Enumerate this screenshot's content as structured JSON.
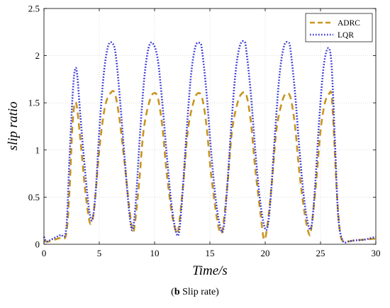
{
  "chart_data": {
    "type": "line",
    "xlabel": "Time/s",
    "ylabel": "slip ratio",
    "xlim": [
      0,
      30
    ],
    "ylim": [
      0,
      2.5
    ],
    "xticks": [
      "0",
      "5",
      "10",
      "15",
      "20",
      "25",
      "30"
    ],
    "yticks": [
      "0",
      "0.5",
      "1",
      "1.5",
      "2",
      "2.5"
    ],
    "grid": true,
    "legend_position": "top-right",
    "series": [
      {
        "name": "ADRC",
        "style": "dashed",
        "color": "#C8961E",
        "x": [
          0,
          0.5,
          1,
          1.5,
          2.0,
          2.3,
          2.6,
          2.9,
          3.3,
          3.7,
          4.1,
          4.35,
          4.6,
          5.0,
          5.5,
          6.0,
          6.4,
          6.8,
          7.3,
          7.7,
          8.0,
          8.2,
          8.6,
          9.0,
          9.5,
          9.9,
          10.3,
          10.7,
          11.1,
          11.6,
          12.0,
          12.2,
          12.6,
          13.0,
          13.5,
          13.9,
          14.3,
          14.7,
          15.1,
          15.6,
          15.95,
          16.2,
          16.6,
          17.0,
          17.5,
          17.9,
          18.3,
          18.7,
          19.1,
          19.6,
          19.9,
          20.2,
          20.6,
          21.0,
          21.5,
          21.9,
          22.3,
          22.7,
          23.1,
          23.6,
          24.0,
          24.2,
          24.6,
          25.0,
          25.4,
          25.8,
          26.0,
          26.2,
          26.5,
          26.8,
          27.2,
          28,
          29,
          30
        ],
        "y": [
          0.03,
          0.03,
          0.05,
          0.07,
          0.1,
          0.55,
          1.3,
          1.5,
          1.1,
          0.6,
          0.25,
          0.25,
          0.45,
          1.0,
          1.45,
          1.6,
          1.6,
          1.35,
          0.85,
          0.4,
          0.15,
          0.2,
          0.65,
          1.2,
          1.5,
          1.6,
          1.55,
          1.25,
          0.75,
          0.3,
          0.12,
          0.2,
          0.65,
          1.2,
          1.5,
          1.6,
          1.55,
          1.25,
          0.75,
          0.3,
          0.12,
          0.2,
          0.65,
          1.2,
          1.5,
          1.6,
          1.58,
          1.3,
          0.8,
          0.3,
          0.05,
          0.2,
          0.65,
          1.2,
          1.5,
          1.6,
          1.55,
          1.25,
          0.75,
          0.3,
          0.1,
          0.2,
          0.65,
          1.2,
          1.5,
          1.6,
          1.58,
          1.2,
          0.5,
          0.1,
          0.03,
          0.04,
          0.05,
          0.06
        ]
      },
      {
        "name": "LQR",
        "style": "dotted",
        "color": "#3A3AD4",
        "x": [
          0,
          0.2,
          0.5,
          1.0,
          1.5,
          2.0,
          2.3,
          2.6,
          2.8,
          3.0,
          3.3,
          3.7,
          4.1,
          4.4,
          4.7,
          5.0,
          5.4,
          5.8,
          6.2,
          6.5,
          6.9,
          7.3,
          7.7,
          8.0,
          8.3,
          8.7,
          9.1,
          9.5,
          9.9,
          10.3,
          10.7,
          11.1,
          11.5,
          11.9,
          12.2,
          12.5,
          12.9,
          13.3,
          13.7,
          14.1,
          14.3,
          14.7,
          15.1,
          15.5,
          15.9,
          16.2,
          16.5,
          16.9,
          17.3,
          17.7,
          18.1,
          18.3,
          18.7,
          19.1,
          19.5,
          19.9,
          20.2,
          20.5,
          20.9,
          21.3,
          21.7,
          22.1,
          22.3,
          22.7,
          23.1,
          23.5,
          23.9,
          24.2,
          24.5,
          24.9,
          25.3,
          25.7,
          26.0,
          26.3,
          26.6,
          27.0,
          27.5,
          28,
          29,
          30
        ],
        "y": [
          0.08,
          0.03,
          0.04,
          0.07,
          0.1,
          0.15,
          0.9,
          1.6,
          1.85,
          1.8,
          1.35,
          0.8,
          0.35,
          0.27,
          0.6,
          1.2,
          1.8,
          2.1,
          2.13,
          2.0,
          1.5,
          0.9,
          0.35,
          0.15,
          0.45,
          1.2,
          1.8,
          2.1,
          2.12,
          1.95,
          1.5,
          0.95,
          0.45,
          0.15,
          0.12,
          0.5,
          1.2,
          1.8,
          2.1,
          2.13,
          2.05,
          1.6,
          1.0,
          0.5,
          0.2,
          0.15,
          0.5,
          1.2,
          1.8,
          2.1,
          2.15,
          2.05,
          1.6,
          1.0,
          0.5,
          0.2,
          0.18,
          0.5,
          1.2,
          1.8,
          2.1,
          2.14,
          2.05,
          1.6,
          1.0,
          0.5,
          0.2,
          0.2,
          0.6,
          1.35,
          1.9,
          2.08,
          1.9,
          1.1,
          0.3,
          0.04,
          0.03,
          0.04,
          0.05,
          0.08
        ]
      }
    ]
  },
  "caption": {
    "bold": "b",
    "text": " Slip rate"
  }
}
